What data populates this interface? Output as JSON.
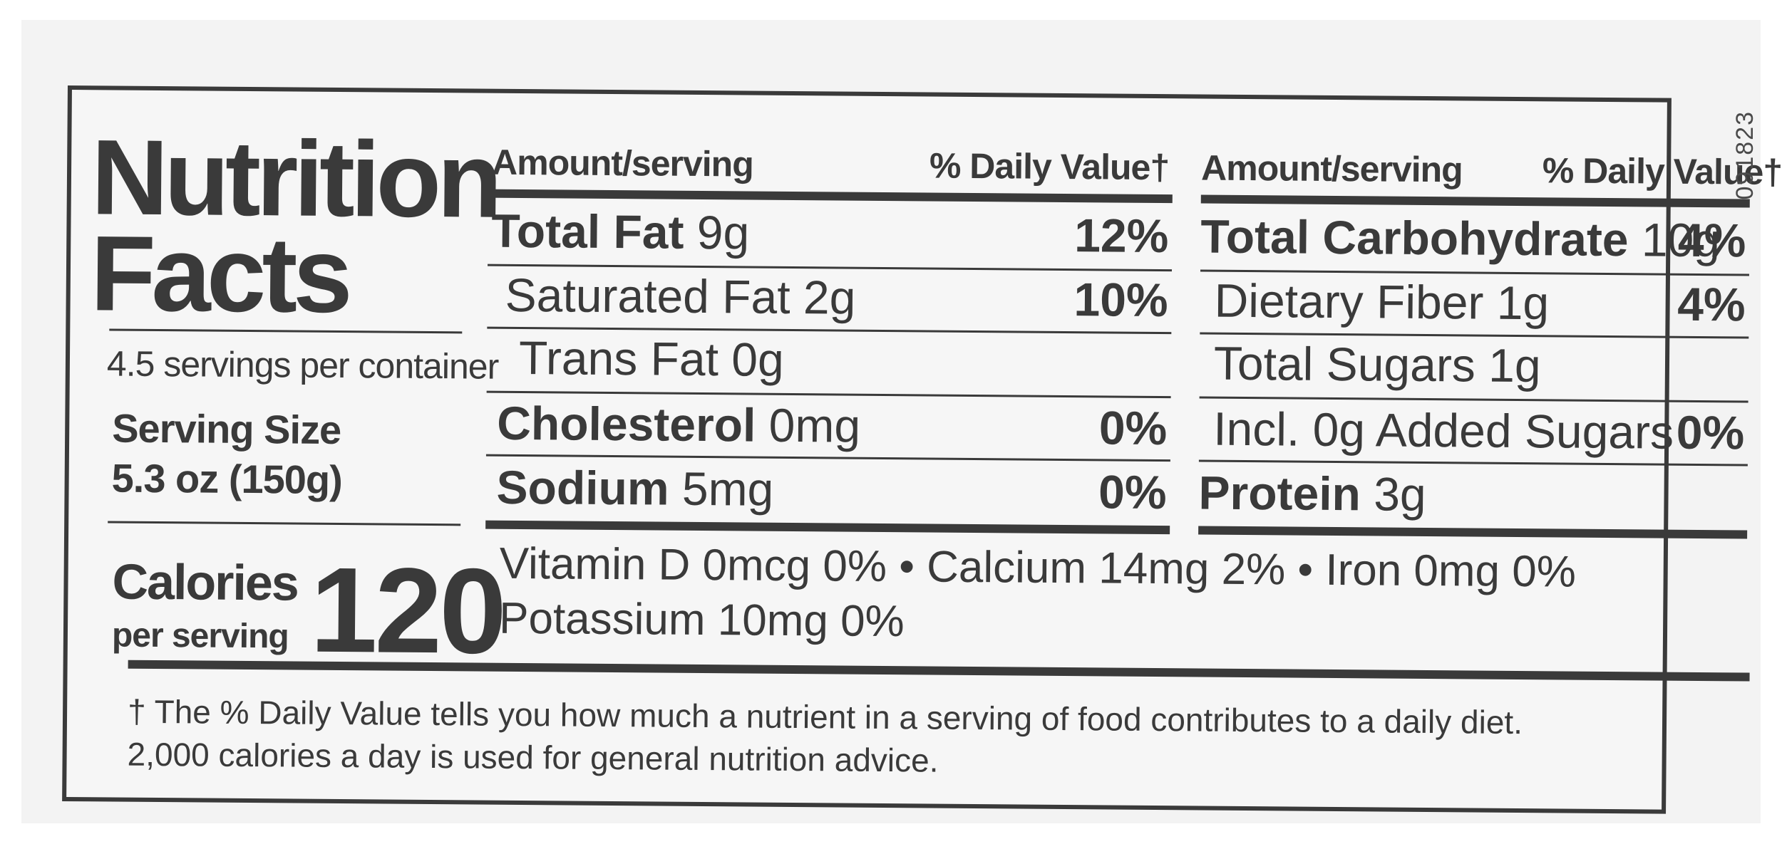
{
  "lot_code": "091823",
  "title_line1": "Nutrition",
  "title_line2": "Facts",
  "servings_per_container": "4.5 servings per container",
  "serving_size_label": "Serving Size",
  "serving_size_value": "5.3 oz (150g)",
  "calories_label": "Calories",
  "calories_sub": "per serving",
  "calories_value": "120",
  "left_column": {
    "header_amount": "Amount/serving",
    "header_dv": "% Daily Value†",
    "rows": [
      {
        "name": "Total Fat",
        "amount": " 9g",
        "dv": "12%"
      },
      {
        "name": "Saturated Fat 2g",
        "amount": "",
        "dv": "10%"
      },
      {
        "name": "Trans Fat 0g",
        "amount": "",
        "dv": ""
      },
      {
        "name": "Cholesterol",
        "amount": " 0mg",
        "dv": "0%"
      },
      {
        "name": "Sodium",
        "amount": " 5mg",
        "dv": "0%"
      }
    ]
  },
  "right_column": {
    "header_amount": "Amount/serving",
    "header_dv": "% Daily Value†",
    "rows": [
      {
        "name": "Total Carbohydrate",
        "amount": " 10g",
        "dv": "4%"
      },
      {
        "name": "Dietary Fiber 1g",
        "amount": "",
        "dv": "4%"
      },
      {
        "name": "Total Sugars 1g",
        "amount": "",
        "dv": ""
      },
      {
        "name": "Incl. 0g Added Sugars",
        "amount": "",
        "dv": "0%"
      },
      {
        "name": "Protein",
        "amount": " 3g",
        "dv": ""
      }
    ]
  },
  "vitamins_line1": "Vitamin D 0mcg 0% • Calcium 14mg 2% • Iron 0mg 0%",
  "vitamins_line2": "Potassium 10mg 0%",
  "footnote_line1": "† The % Daily Value tells you how much a nutrient in a serving of food contributes to a daily diet.",
  "footnote_line2": "2,000 calories a day is used for general nutrition advice."
}
